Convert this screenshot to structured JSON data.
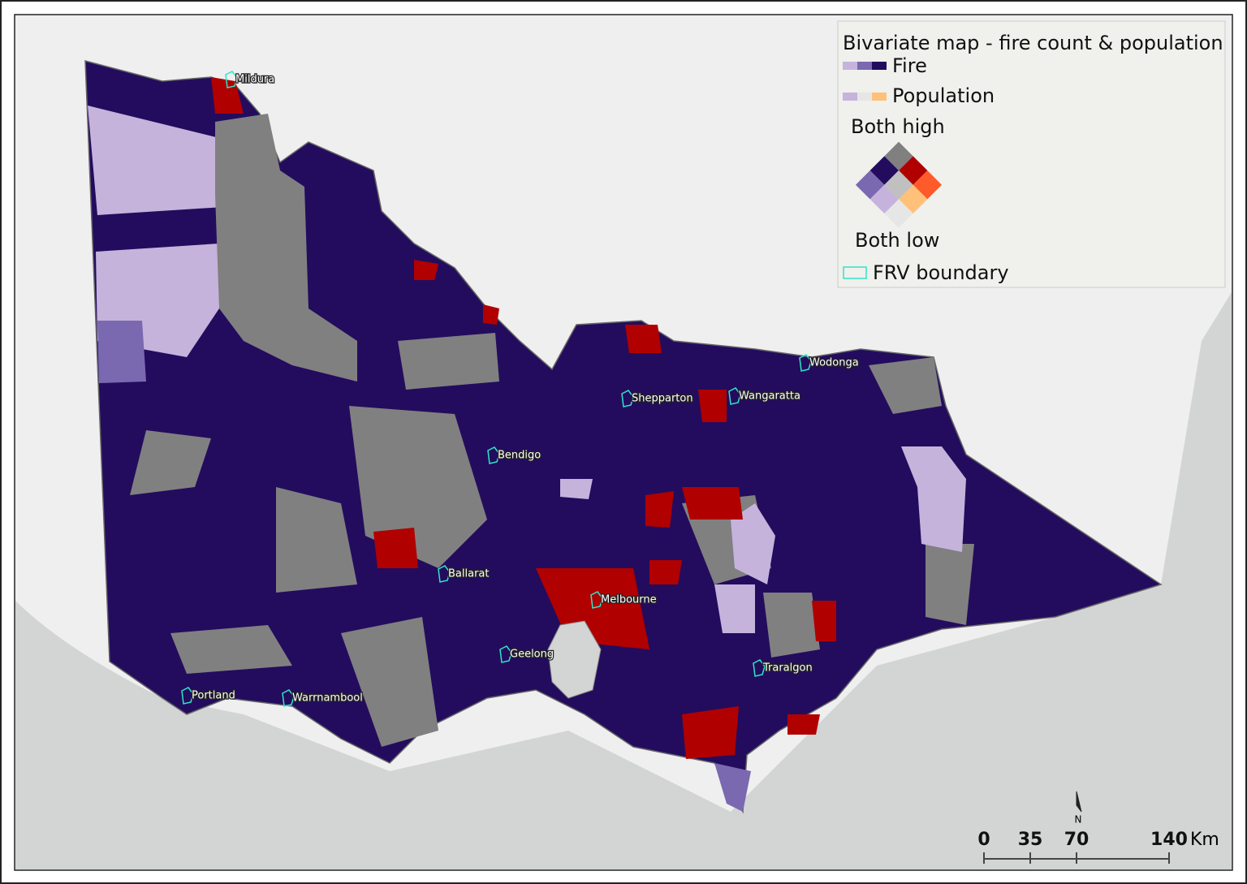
{
  "map": {
    "legend": {
      "title": "Bivariate map - fire count & population",
      "items": [
        "Fire",
        "Population"
      ],
      "high_label": "Both high",
      "low_label": "Both low",
      "boundary_label": "FRV boundary"
    },
    "places": [
      "Mildura",
      "Wodonga",
      "Shepparton",
      "Wangaratta",
      "Bendigo",
      "Ballarat",
      "Melbourne",
      "Geelong",
      "Traralgon",
      "Portland",
      "Warrnambool"
    ],
    "scale_bar": {
      "ticks": [
        0,
        35,
        70,
        140
      ],
      "unit": "Km"
    },
    "north": "N"
  }
}
